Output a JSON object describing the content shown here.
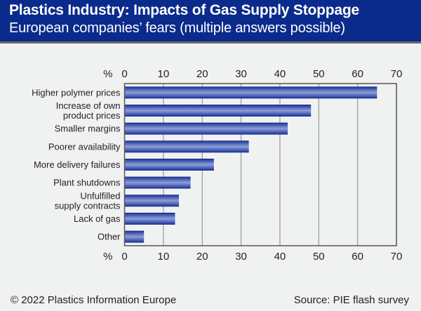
{
  "header": {
    "title": "Plastics Industry: Impacts of Gas Supply Stoppage",
    "subtitle": "European companies’ fears (multiple answers possible)"
  },
  "footer": {
    "copyright": "© 2022 Plastics Information Europe",
    "source": "Source: PIE flash survey"
  },
  "colors": {
    "header_bg": "#0a2a8c",
    "bar_dark": "#13288f",
    "bar_light": "#8e9dd6",
    "background": "#f0f2f1"
  },
  "chart_data": {
    "type": "bar",
    "orientation": "horizontal",
    "title": "Plastics Industry: Impacts of Gas Supply Stoppage",
    "subtitle": "European companies’ fears (multiple answers possible)",
    "xlabel": "%",
    "ylabel": "",
    "xlim": [
      0,
      70
    ],
    "xticks": [
      0,
      10,
      20,
      30,
      40,
      50,
      60,
      70
    ],
    "axis_unit_label": "%",
    "grid": true,
    "categories": [
      [
        "Higher polymer prices"
      ],
      [
        "Increase of own",
        "product prices"
      ],
      [
        "Smaller margins"
      ],
      [
        "Poorer availability"
      ],
      [
        "More delivery failures"
      ],
      [
        "Plant shutdowns"
      ],
      [
        "Unfulfilled",
        "supply contracts"
      ],
      [
        "Lack of gas"
      ],
      [
        "Other"
      ]
    ],
    "values": [
      65,
      48,
      42,
      32,
      23,
      17,
      14,
      13,
      5
    ]
  }
}
